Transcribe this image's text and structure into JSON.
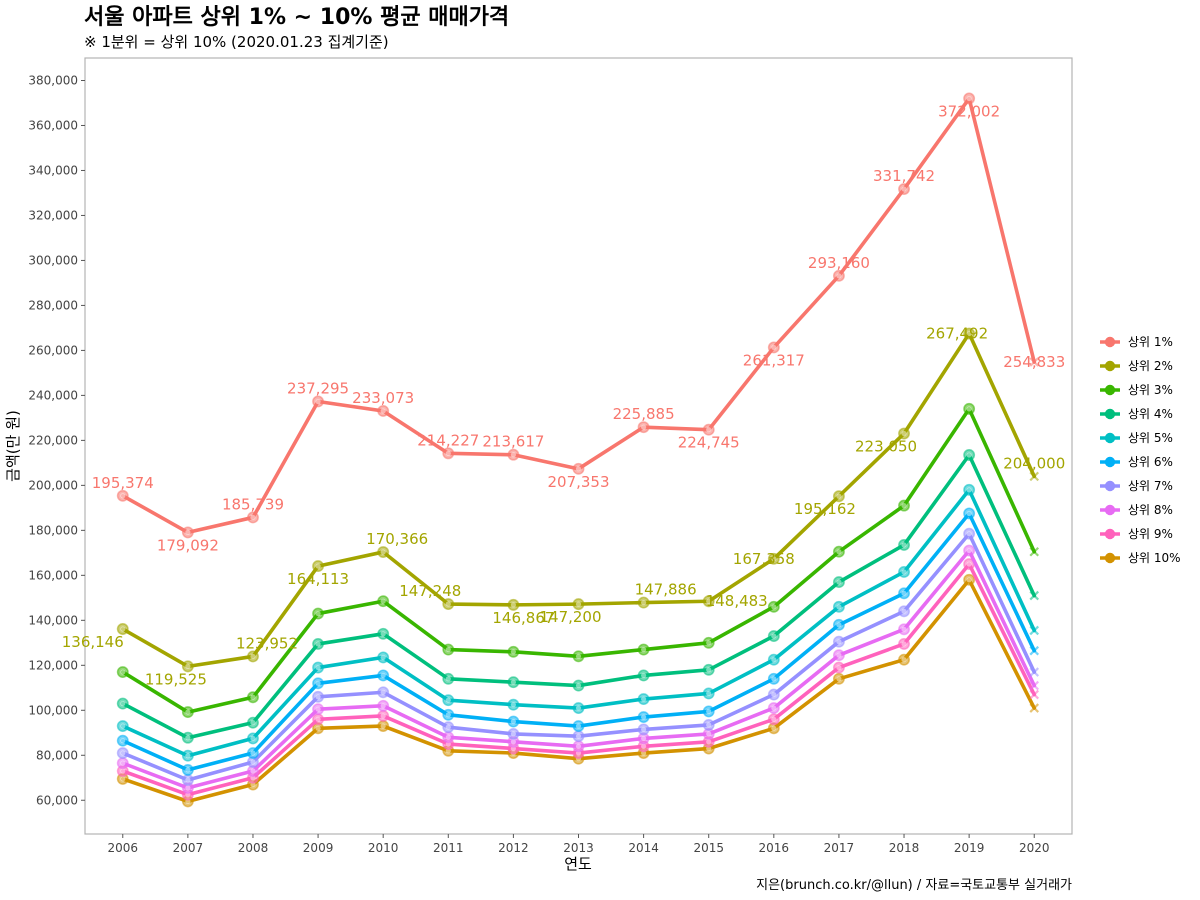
{
  "chart_data": {
    "type": "line",
    "title": "서울 아파트 상위 1% ~ 10% 평균 매매가격",
    "subtitle": "※ 1분위 = 상위 10% (2020.01.23 집계기준)",
    "xlabel": "연도",
    "ylabel": "금액(만 원)",
    "caption": "지은(brunch.co.kr/@llun) / 자료=국토교통부 실거래가",
    "x": [
      2006,
      2007,
      2008,
      2009,
      2010,
      2011,
      2012,
      2013,
      2014,
      2015,
      2016,
      2017,
      2018,
      2019,
      2020
    ],
    "x_tick_labels": [
      "2006",
      "2007",
      "2008",
      "2009",
      "2010",
      "2011",
      "2012",
      "2013",
      "2014",
      "2015",
      "2016",
      "2017",
      "2018",
      "2019",
      "2020"
    ],
    "ylim": [
      45000,
      390000
    ],
    "y_ticks": [
      60000,
      80000,
      100000,
      120000,
      140000,
      160000,
      180000,
      200000,
      220000,
      240000,
      260000,
      280000,
      300000,
      320000,
      340000,
      360000,
      380000
    ],
    "y_tick_labels": [
      "60,000",
      "80,000",
      "100,000",
      "120,000",
      "140,000",
      "160,000",
      "180,000",
      "200,000",
      "220,000",
      "240,000",
      "260,000",
      "280,000",
      "300,000",
      "320,000",
      "340,000",
      "360,000",
      "380,000"
    ],
    "grid": false,
    "legend_position": "right",
    "last_point_marker": "x",
    "series": [
      {
        "name": "상위 1%",
        "color": "#F8766D",
        "values": [
          195374,
          179092,
          185739,
          237295,
          233073,
          214227,
          213617,
          207353,
          225885,
          224745,
          261317,
          293160,
          331742,
          372002,
          254833
        ],
        "labels": [
          "195,374",
          "179,092",
          "185,739",
          "237,295",
          "233,073",
          "214,227",
          "213,617",
          "207,353",
          "225,885",
          "224,745",
          "261,317",
          "293,160",
          "331,742",
          "372,002",
          "254,833"
        ],
        "label_dy": [
          -13,
          13,
          -13,
          -13,
          -13,
          -13,
          -13,
          13,
          -13,
          13,
          13,
          -13,
          -13,
          13,
          0
        ]
      },
      {
        "name": "상위 2%",
        "color": "#A3A500",
        "values": [
          136146,
          119525,
          123952,
          164113,
          170366,
          147248,
          146867,
          147200,
          147886,
          148483,
          167358,
          195162,
          223050,
          267492,
          204000
        ],
        "labels": [
          "136,146",
          "119,525",
          "123,952",
          "164,113",
          "170,366",
          "147,248",
          "146,867",
          "147,200",
          "147,886",
          "148,483",
          "167,358",
          "195,162",
          "223,050",
          "267,492",
          "204,000"
        ],
        "label_dy": [
          13,
          13,
          -13,
          13,
          -13,
          -13,
          13,
          13,
          -13,
          0,
          0,
          13,
          13,
          0,
          -13
        ],
        "label_dx": [
          -30,
          -12,
          14,
          0,
          14,
          -18,
          10,
          -8,
          22,
          28,
          -10,
          -14,
          -18,
          -12,
          0
        ]
      },
      {
        "name": "상위 3%",
        "color": "#39B600",
        "values": [
          117000,
          99200,
          105800,
          143000,
          148500,
          127000,
          126000,
          124000,
          127000,
          130000,
          146000,
          170500,
          191000,
          234000,
          170500
        ]
      },
      {
        "name": "상위 4%",
        "color": "#00BF7D",
        "values": [
          103000,
          87800,
          94500,
          129500,
          134000,
          114000,
          112500,
          111000,
          115500,
          118000,
          133000,
          157000,
          173500,
          213500,
          151000
        ]
      },
      {
        "name": "상위 5%",
        "color": "#00BFC4",
        "values": [
          93000,
          79800,
          87500,
          119000,
          123500,
          104500,
          102500,
          101000,
          105000,
          107500,
          122500,
          146000,
          161500,
          198000,
          135500
        ]
      },
      {
        "name": "상위 6%",
        "color": "#00B0F6",
        "values": [
          86500,
          73500,
          81000,
          112000,
          115500,
          98000,
          95000,
          93000,
          97000,
          99500,
          114000,
          138000,
          152000,
          187500,
          126500
        ]
      },
      {
        "name": "상위 7%",
        "color": "#9590FF",
        "values": [
          81000,
          69000,
          77000,
          106000,
          108000,
          92500,
          89500,
          88500,
          91500,
          93500,
          107000,
          130500,
          144000,
          178500,
          117000
        ]
      },
      {
        "name": "상위 8%",
        "color": "#E76BF3",
        "values": [
          76500,
          65500,
          73000,
          100500,
          102000,
          88000,
          86000,
          84000,
          87500,
          89500,
          101000,
          124500,
          136000,
          171000,
          111000
        ]
      },
      {
        "name": "상위 9%",
        "color": "#FF62BC",
        "values": [
          73000,
          62500,
          70000,
          96000,
          97500,
          85000,
          83000,
          81000,
          84000,
          86000,
          96000,
          119000,
          129500,
          165000,
          107000
        ]
      },
      {
        "name": "상위 10%",
        "color": "#D39200",
        "values": [
          69500,
          59500,
          67000,
          92000,
          93000,
          82000,
          81000,
          78500,
          81000,
          83000,
          92000,
          114000,
          122500,
          158000,
          101000
        ]
      }
    ]
  }
}
